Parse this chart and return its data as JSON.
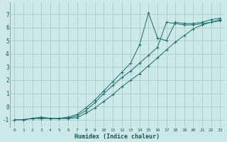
{
  "xlabel": "Humidex (Indice chaleur)",
  "xlim": [
    -0.5,
    23.5
  ],
  "ylim": [
    -1.6,
    7.9
  ],
  "yticks": [
    -1,
    0,
    1,
    2,
    3,
    4,
    5,
    6,
    7
  ],
  "xticks": [
    0,
    1,
    2,
    3,
    4,
    5,
    6,
    7,
    8,
    9,
    10,
    11,
    12,
    13,
    14,
    15,
    16,
    17,
    18,
    19,
    20,
    21,
    22,
    23
  ],
  "bg_color": "#cce8e8",
  "grid_color": "#aacccc",
  "line_color": "#1a6b6b",
  "line1_x": [
    0,
    1,
    2,
    3,
    4,
    5,
    6,
    7,
    8,
    9,
    10,
    11,
    12,
    13,
    14,
    15,
    16,
    17,
    18,
    19,
    20,
    21,
    22,
    23
  ],
  "line1_y": [
    -1,
    -1,
    -0.9,
    -0.9,
    -0.9,
    -0.9,
    -0.9,
    -0.85,
    -0.5,
    -0.1,
    0.4,
    0.9,
    1.5,
    2.0,
    2.5,
    3.1,
    3.7,
    4.3,
    4.9,
    5.4,
    5.9,
    6.2,
    6.4,
    6.6
  ],
  "line2_x": [
    0,
    1,
    2,
    3,
    4,
    5,
    6,
    7,
    8,
    9,
    10,
    11,
    12,
    13,
    14,
    15,
    16,
    17,
    18,
    19,
    20,
    21,
    22,
    23
  ],
  "line2_y": [
    -1,
    -1,
    -0.9,
    -0.8,
    -0.9,
    -0.9,
    -0.8,
    -0.6,
    -0.1,
    0.5,
    1.2,
    1.9,
    2.6,
    3.3,
    4.7,
    7.1,
    5.2,
    5.0,
    6.4,
    6.3,
    6.3,
    6.4,
    6.6,
    6.7
  ],
  "line3_x": [
    0,
    1,
    2,
    3,
    4,
    5,
    6,
    7,
    8,
    9,
    10,
    11,
    12,
    13,
    14,
    15,
    16,
    17,
    18,
    19,
    20,
    21,
    22,
    23
  ],
  "line3_y": [
    -1,
    -1,
    -0.9,
    -0.9,
    -0.9,
    -0.9,
    -0.9,
    -0.7,
    -0.3,
    0.3,
    1.0,
    1.6,
    2.2,
    2.7,
    3.3,
    3.9,
    4.5,
    6.4,
    6.3,
    6.2,
    6.2,
    6.3,
    6.4,
    6.5
  ]
}
